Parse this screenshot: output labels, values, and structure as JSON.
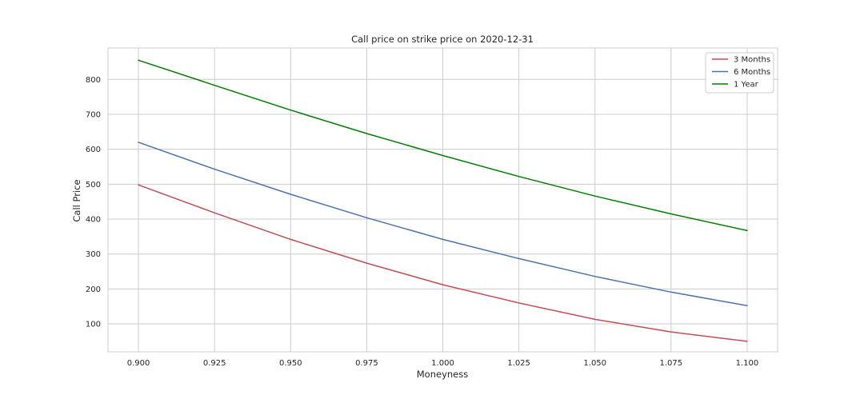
{
  "chart_data": {
    "type": "line",
    "title": "Call price on strike price on 2020-12-31",
    "xlabel": "Moneyness",
    "ylabel": "Call Price",
    "xlim": [
      0.89,
      1.11
    ],
    "ylim": [
      20,
      890
    ],
    "xticks": [
      0.9,
      0.925,
      0.95,
      0.975,
      1.0,
      1.025,
      1.05,
      1.075,
      1.1
    ],
    "xtick_labels": [
      "0.900",
      "0.925",
      "0.950",
      "0.975",
      "1.000",
      "1.025",
      "1.050",
      "1.075",
      "1.100"
    ],
    "yticks": [
      100,
      200,
      300,
      400,
      500,
      600,
      700,
      800
    ],
    "ytick_labels": [
      "100",
      "200",
      "300",
      "400",
      "500",
      "600",
      "700",
      "800"
    ],
    "grid": true,
    "legend_position": "top-right",
    "x": [
      0.9,
      0.925,
      0.95,
      0.975,
      1.0,
      1.025,
      1.05,
      1.075,
      1.1
    ],
    "series": [
      {
        "name": "3 Months",
        "color": "#c44e52",
        "values": [
          498,
          418,
          342,
          274,
          212,
          160,
          113,
          77,
          50
        ]
      },
      {
        "name": "6 Months",
        "color": "#4c72b0",
        "values": [
          620,
          543,
          471,
          404,
          342,
          287,
          236,
          191,
          152
        ]
      },
      {
        "name": "1 Year",
        "color": "#008000",
        "values": [
          855,
          783,
          712,
          645,
          582,
          522,
          466,
          415,
          367
        ]
      }
    ]
  }
}
